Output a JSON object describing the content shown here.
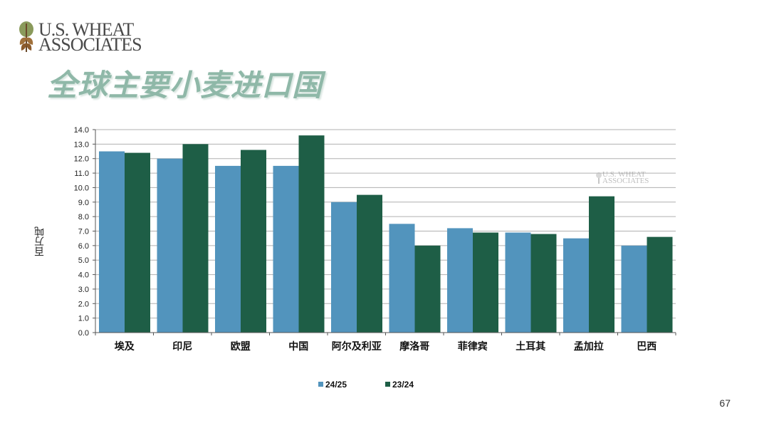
{
  "logo": {
    "line1": "U.S. WHEAT",
    "line2": "ASSOCIATES"
  },
  "slide_title": "全球主要小麦进口国",
  "page_number": "67",
  "colors": {
    "series_2425": "#5294bd",
    "series_2324": "#1e5e46",
    "title": "#8fb8a8",
    "grid": "#b0b0b0"
  },
  "chart_data": {
    "type": "bar",
    "title": "",
    "xlabel": "",
    "ylabel": "百万吨",
    "ylim": [
      0,
      14
    ],
    "yticks": [
      "0.0",
      "1.0",
      "2.0",
      "3.0",
      "4.0",
      "5.0",
      "6.0",
      "7.0",
      "8.0",
      "9.0",
      "10.0",
      "11.0",
      "12.0",
      "13.0",
      "14.0"
    ],
    "grid": true,
    "legend_position": "bottom",
    "categories": [
      "埃及",
      "印尼",
      "欧盟",
      "中国",
      "阿尔及利亚",
      "摩洛哥",
      "菲律宾",
      "土耳其",
      "孟加拉",
      "巴西"
    ],
    "series": [
      {
        "name": "24/25",
        "color": "#5294bd",
        "values": [
          12.5,
          12.0,
          11.5,
          11.5,
          9.0,
          7.5,
          7.2,
          6.9,
          6.5,
          6.0
        ]
      },
      {
        "name": "23/24",
        "color": "#1e5e46",
        "values": [
          12.4,
          13.0,
          12.6,
          13.6,
          9.5,
          6.0,
          6.9,
          6.8,
          9.4,
          6.6
        ]
      }
    ]
  }
}
